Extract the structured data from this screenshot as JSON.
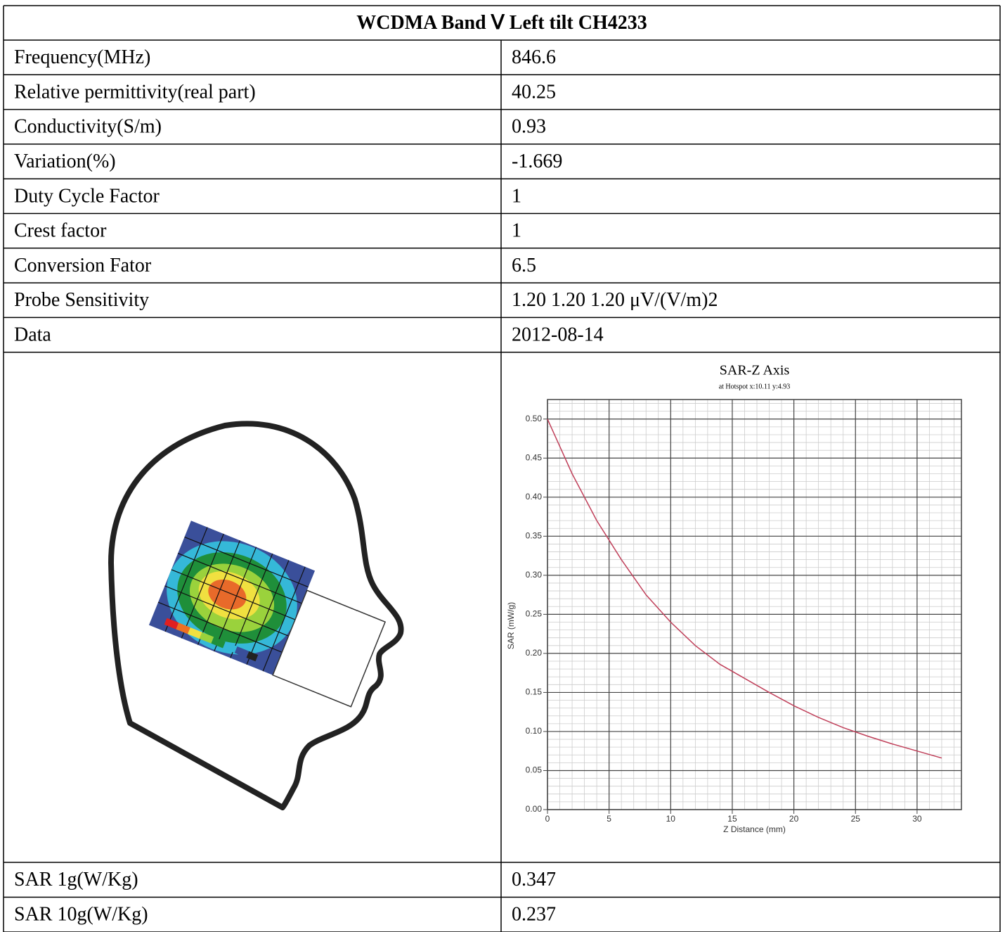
{
  "table": {
    "title": "WCDMA Band Ⅴ Left tilt CH4233",
    "rows": [
      [
        "Frequency(MHz)",
        "846.6"
      ],
      [
        "Relative permittivity(real part)",
        "40.25"
      ],
      [
        "Conductivity(S/m)",
        "0.93"
      ],
      [
        "Variation(%)",
        "-1.669"
      ],
      [
        "Duty Cycle Factor",
        "1"
      ],
      [
        "Crest factor",
        "1"
      ],
      [
        "Conversion Fator",
        "6.5"
      ],
      [
        "Probe Sensitivity",
        "1.20 1.20 1.20 μV/(V/m)2"
      ],
      [
        "Data",
        "2012-08-14"
      ]
    ],
    "result_rows": [
      [
        "SAR 1g(W/Kg)",
        "0.347"
      ],
      [
        "SAR 10g(W/Kg)",
        "0.237"
      ]
    ]
  },
  "chart_data": {
    "type": "line",
    "title": "SAR-Z Axis",
    "subtitle": "at Hotspot x:10.11 y:4.93",
    "x_label": "Z Distance (mm)",
    "y_label": "SAR (mW/g)",
    "x": [
      0,
      2,
      4,
      6,
      8,
      10,
      12,
      14,
      16,
      18,
      20,
      22,
      24,
      26,
      28,
      30,
      32
    ],
    "values": [
      0.5,
      0.43,
      0.37,
      0.32,
      0.275,
      0.24,
      0.21,
      0.186,
      0.168,
      0.15,
      0.133,
      0.118,
      0.105,
      0.094,
      0.084,
      0.075,
      0.066
    ],
    "color": "#c0405a",
    "xlim": [
      0,
      33.6
    ],
    "xticks": [
      0,
      5,
      10,
      15,
      20,
      25,
      30
    ],
    "ylim": [
      0,
      0.525
    ],
    "yticks": [
      {
        "value": 0,
        "label": "0.00"
      },
      {
        "value": 0.05,
        "label": "0.05"
      },
      {
        "value": 0.1,
        "label": "0.10"
      },
      {
        "value": 0.15,
        "label": "0.15"
      },
      {
        "value": 0.2,
        "label": "0.20"
      },
      {
        "value": 0.25,
        "label": "0.25"
      },
      {
        "value": 0.3,
        "label": "0.30"
      },
      {
        "value": 0.35,
        "label": "0.35"
      },
      {
        "value": 0.4,
        "label": "0.40"
      },
      {
        "value": 0.45,
        "label": "0.45"
      },
      {
        "value": 0.5,
        "label": "0.50"
      }
    ],
    "grid": true,
    "minor_grid": true
  }
}
